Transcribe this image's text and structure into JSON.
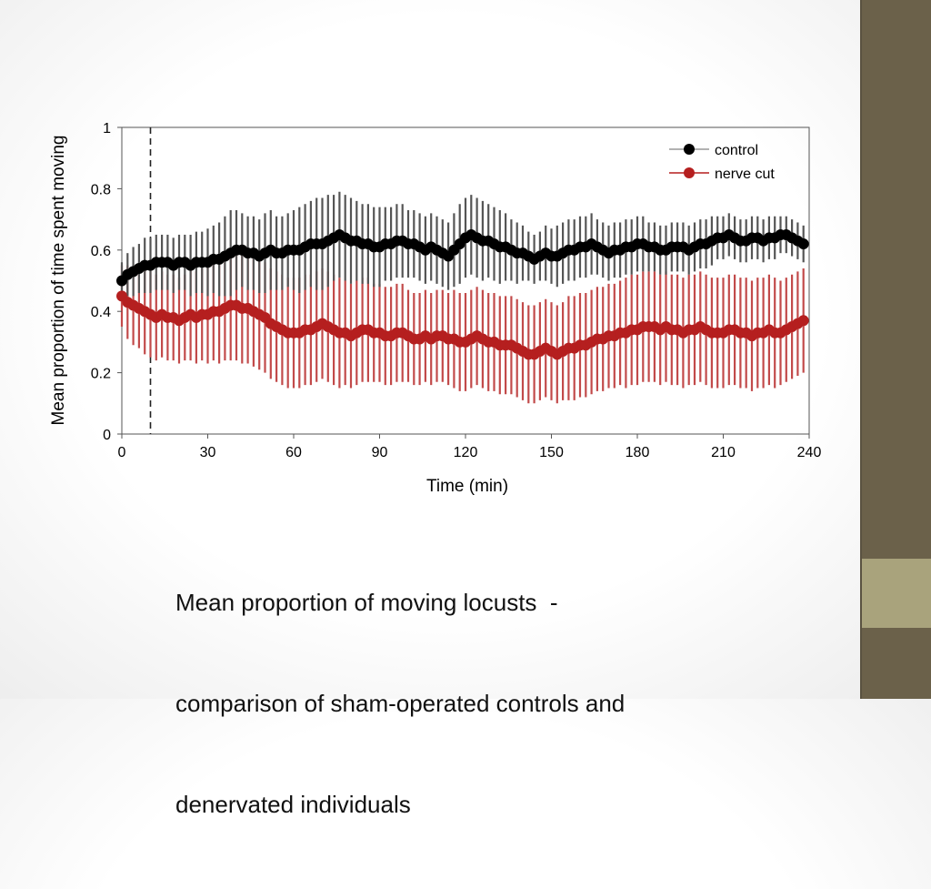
{
  "slide": {
    "caption_lines": [
      "Mean proportion of moving locusts  -",
      "comparison of sham-operated controls and",
      "denervated individuals"
    ]
  },
  "colors": {
    "sidebar": "#6b614a",
    "sidebar_accent": "#a9a37c",
    "control": "#000000",
    "control_error": "#555555",
    "nerve_cut": "#b51f1f",
    "nerve_cut_error": "#c24a4a"
  },
  "chart_data": {
    "type": "line",
    "title": "",
    "xlabel": "Time (min)",
    "ylabel": "Mean proportion of time spent moving",
    "xlim": [
      0,
      240
    ],
    "ylim": [
      0,
      1
    ],
    "xticks": [
      0,
      30,
      60,
      90,
      120,
      150,
      180,
      210,
      240
    ],
    "xtick_labels": [
      "0",
      "30",
      "60",
      "90",
      "120",
      "150",
      "180",
      "210",
      "240"
    ],
    "yticks": [
      0,
      0.2,
      0.4,
      0.6,
      0.8,
      1
    ],
    "ytick_labels": [
      "0",
      "0.2",
      "0.4",
      "0.6",
      "0.8",
      "1"
    ],
    "vline_x": 10,
    "grid": false,
    "legend": "top-right",
    "x": [
      0,
      2,
      4,
      6,
      8,
      10,
      12,
      14,
      16,
      18,
      20,
      22,
      24,
      26,
      28,
      30,
      32,
      34,
      36,
      38,
      40,
      42,
      44,
      46,
      48,
      50,
      52,
      54,
      56,
      58,
      60,
      62,
      64,
      66,
      68,
      70,
      72,
      74,
      76,
      78,
      80,
      82,
      84,
      86,
      88,
      90,
      92,
      94,
      96,
      98,
      100,
      102,
      104,
      106,
      108,
      110,
      112,
      114,
      116,
      118,
      120,
      122,
      124,
      126,
      128,
      130,
      132,
      134,
      136,
      138,
      140,
      142,
      144,
      146,
      148,
      150,
      152,
      154,
      156,
      158,
      160,
      162,
      164,
      166,
      168,
      170,
      172,
      174,
      176,
      178,
      180,
      182,
      184,
      186,
      188,
      190,
      192,
      194,
      196,
      198,
      200,
      202,
      204,
      206,
      208,
      210,
      212,
      214,
      216,
      218,
      220,
      222,
      224,
      226,
      228,
      230,
      232,
      234,
      236,
      238
    ],
    "series": [
      {
        "name": "control",
        "values": [
          0.5,
          0.52,
          0.53,
          0.54,
          0.55,
          0.55,
          0.56,
          0.56,
          0.56,
          0.55,
          0.56,
          0.56,
          0.55,
          0.56,
          0.56,
          0.56,
          0.57,
          0.57,
          0.58,
          0.59,
          0.6,
          0.6,
          0.59,
          0.59,
          0.58,
          0.59,
          0.6,
          0.59,
          0.59,
          0.6,
          0.6,
          0.6,
          0.61,
          0.62,
          0.62,
          0.62,
          0.63,
          0.64,
          0.65,
          0.64,
          0.63,
          0.63,
          0.62,
          0.62,
          0.61,
          0.61,
          0.62,
          0.62,
          0.63,
          0.63,
          0.62,
          0.62,
          0.61,
          0.6,
          0.61,
          0.6,
          0.59,
          0.58,
          0.6,
          0.62,
          0.64,
          0.65,
          0.64,
          0.63,
          0.63,
          0.62,
          0.61,
          0.61,
          0.6,
          0.59,
          0.59,
          0.58,
          0.57,
          0.58,
          0.59,
          0.58,
          0.58,
          0.59,
          0.6,
          0.6,
          0.61,
          0.61,
          0.62,
          0.61,
          0.6,
          0.59,
          0.6,
          0.6,
          0.61,
          0.61,
          0.62,
          0.62,
          0.61,
          0.61,
          0.6,
          0.6,
          0.61,
          0.61,
          0.61,
          0.6,
          0.61,
          0.62,
          0.62,
          0.63,
          0.64,
          0.64,
          0.65,
          0.64,
          0.63,
          0.63,
          0.64,
          0.64,
          0.63,
          0.64,
          0.64,
          0.65,
          0.65,
          0.64,
          0.63,
          0.62
        ],
        "err": [
          0.06,
          0.07,
          0.08,
          0.08,
          0.09,
          0.09,
          0.09,
          0.09,
          0.09,
          0.09,
          0.09,
          0.09,
          0.1,
          0.1,
          0.1,
          0.11,
          0.11,
          0.12,
          0.13,
          0.14,
          0.13,
          0.12,
          0.12,
          0.12,
          0.12,
          0.13,
          0.13,
          0.12,
          0.12,
          0.12,
          0.13,
          0.14,
          0.14,
          0.14,
          0.15,
          0.15,
          0.15,
          0.14,
          0.14,
          0.14,
          0.14,
          0.13,
          0.13,
          0.13,
          0.13,
          0.13,
          0.12,
          0.12,
          0.12,
          0.12,
          0.11,
          0.11,
          0.11,
          0.11,
          0.11,
          0.11,
          0.11,
          0.11,
          0.12,
          0.13,
          0.13,
          0.13,
          0.13,
          0.13,
          0.12,
          0.12,
          0.12,
          0.11,
          0.1,
          0.1,
          0.09,
          0.08,
          0.08,
          0.08,
          0.09,
          0.09,
          0.1,
          0.1,
          0.1,
          0.1,
          0.1,
          0.1,
          0.1,
          0.09,
          0.09,
          0.09,
          0.09,
          0.09,
          0.09,
          0.09,
          0.09,
          0.09,
          0.08,
          0.08,
          0.08,
          0.08,
          0.08,
          0.08,
          0.08,
          0.08,
          0.08,
          0.08,
          0.08,
          0.08,
          0.07,
          0.07,
          0.07,
          0.07,
          0.07,
          0.07,
          0.07,
          0.07,
          0.07,
          0.07,
          0.07,
          0.06,
          0.06,
          0.06,
          0.06,
          0.06
        ]
      },
      {
        "name": "nerve cut",
        "values": [
          0.45,
          0.43,
          0.42,
          0.41,
          0.4,
          0.39,
          0.38,
          0.39,
          0.38,
          0.38,
          0.37,
          0.38,
          0.39,
          0.38,
          0.39,
          0.39,
          0.4,
          0.4,
          0.41,
          0.42,
          0.42,
          0.41,
          0.41,
          0.4,
          0.39,
          0.38,
          0.36,
          0.35,
          0.34,
          0.33,
          0.33,
          0.33,
          0.34,
          0.34,
          0.35,
          0.36,
          0.35,
          0.34,
          0.33,
          0.33,
          0.32,
          0.33,
          0.34,
          0.34,
          0.33,
          0.33,
          0.32,
          0.32,
          0.33,
          0.33,
          0.32,
          0.31,
          0.31,
          0.32,
          0.31,
          0.32,
          0.32,
          0.31,
          0.31,
          0.3,
          0.3,
          0.31,
          0.32,
          0.31,
          0.3,
          0.3,
          0.29,
          0.29,
          0.29,
          0.28,
          0.27,
          0.26,
          0.26,
          0.27,
          0.28,
          0.27,
          0.26,
          0.27,
          0.28,
          0.28,
          0.29,
          0.29,
          0.3,
          0.31,
          0.31,
          0.32,
          0.32,
          0.33,
          0.33,
          0.34,
          0.34,
          0.35,
          0.35,
          0.35,
          0.34,
          0.35,
          0.34,
          0.34,
          0.33,
          0.34,
          0.34,
          0.35,
          0.34,
          0.33,
          0.33,
          0.33,
          0.34,
          0.34,
          0.33,
          0.33,
          0.32,
          0.33,
          0.33,
          0.34,
          0.33,
          0.33,
          0.34,
          0.35,
          0.36,
          0.37
        ],
        "err": [
          0.1,
          0.12,
          0.13,
          0.13,
          0.14,
          0.14,
          0.14,
          0.14,
          0.14,
          0.14,
          0.14,
          0.14,
          0.15,
          0.15,
          0.15,
          0.16,
          0.16,
          0.17,
          0.17,
          0.18,
          0.18,
          0.18,
          0.18,
          0.18,
          0.18,
          0.18,
          0.18,
          0.18,
          0.18,
          0.18,
          0.18,
          0.18,
          0.18,
          0.18,
          0.18,
          0.18,
          0.18,
          0.18,
          0.18,
          0.17,
          0.17,
          0.17,
          0.17,
          0.17,
          0.16,
          0.16,
          0.16,
          0.16,
          0.16,
          0.16,
          0.15,
          0.15,
          0.15,
          0.15,
          0.15,
          0.15,
          0.15,
          0.15,
          0.16,
          0.16,
          0.16,
          0.16,
          0.16,
          0.16,
          0.16,
          0.16,
          0.16,
          0.16,
          0.16,
          0.16,
          0.16,
          0.16,
          0.16,
          0.16,
          0.16,
          0.16,
          0.16,
          0.16,
          0.17,
          0.17,
          0.17,
          0.17,
          0.17,
          0.17,
          0.17,
          0.17,
          0.17,
          0.17,
          0.18,
          0.18,
          0.18,
          0.18,
          0.18,
          0.18,
          0.18,
          0.18,
          0.18,
          0.18,
          0.18,
          0.18,
          0.18,
          0.18,
          0.18,
          0.18,
          0.18,
          0.18,
          0.18,
          0.18,
          0.18,
          0.18,
          0.18,
          0.18,
          0.18,
          0.18,
          0.18,
          0.17,
          0.17,
          0.17,
          0.17,
          0.17
        ]
      }
    ]
  }
}
